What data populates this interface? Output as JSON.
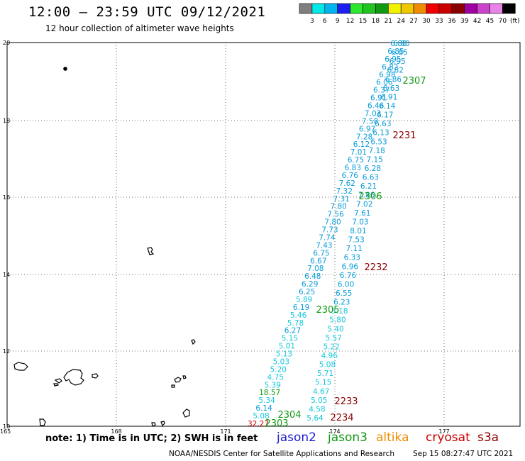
{
  "header": {
    "title": "12:00 – 23:59 UTC 09/12/2021",
    "subtitle": "12 hour collection of altimeter wave heights"
  },
  "colorbar": {
    "labels": [
      "3",
      "6",
      "9",
      "12",
      "15",
      "18",
      "21",
      "24",
      "27",
      "30",
      "33",
      "36",
      "39",
      "42",
      "45",
      "70"
    ],
    "unit": "(ft)",
    "colors": [
      "#7f7f7f",
      "#00e8e8",
      "#00b4f0",
      "#1e1ef0",
      "#2ee82e",
      "#22c422",
      "#119911",
      "#f2f200",
      "#f0c800",
      "#f08c00",
      "#f00000",
      "#cc0000",
      "#8b0000",
      "#a000a0",
      "#cc44cc",
      "#e884e8",
      "#000000"
    ]
  },
  "axes": {
    "x_ticks": [
      "165",
      "168",
      "171",
      "174",
      "177"
    ],
    "y_ticks": [
      "20",
      "18",
      "16",
      "14",
      "12",
      "10"
    ]
  },
  "passes": [
    {
      "label": "2307",
      "color": "#119911"
    },
    {
      "label": "2231",
      "color": "#8b0000"
    },
    {
      "label": "2306",
      "color": "#119911"
    },
    {
      "label": "2232",
      "color": "#8b0000"
    },
    {
      "label": "2305",
      "color": "#119911"
    },
    {
      "label": "2233",
      "color": "#8b0000"
    },
    {
      "label": "2304",
      "color": "#119911"
    },
    {
      "label": "2234",
      "color": "#8b0000"
    },
    {
      "label": "2303",
      "color": "#119911"
    }
  ],
  "track_left": [
    "6.80",
    "6.85",
    "6.95",
    "6.82",
    "6.98",
    "6.06",
    "6.37",
    "6.91",
    "6.46",
    "7.03",
    "7.58",
    "6.97",
    "7.28",
    "6.12",
    "7.01",
    "6.75",
    "6.83",
    "6.76",
    "7.62",
    "7.32",
    "7.31",
    "7.80",
    "7.56",
    "7.80",
    "7.73",
    "7.74",
    "7.43",
    "6.75",
    "6.67",
    "7.08",
    "6.48",
    "6.29",
    "6.25",
    "5.89",
    "6.19",
    "5.46",
    "5.78",
    "6.27",
    "5.15",
    "5.01",
    "5.13",
    "5.03",
    "5.20",
    "4.75",
    "5.39",
    "18.57",
    "5.34",
    "6.14",
    "5.08",
    "32.27"
  ],
  "track_right": [
    "6.80",
    "6.85",
    "6.95",
    "6.82",
    "6.86",
    "6.63",
    "6.91",
    "6.14",
    "6.17",
    "6.63",
    "6.13",
    "6.53",
    "7.18",
    "7.15",
    "6.28",
    "6.63",
    "6.21",
    "7.86",
    "7.02",
    "7.61",
    "7.03",
    "8.01",
    "7.53",
    "7.11",
    "6.33",
    "6.96",
    "6.76",
    "6.00",
    "6.55",
    "6.23",
    "5.18",
    "5.80",
    "5.40",
    "5.57",
    "5.22",
    "4.96",
    "5.08",
    "5.71",
    "5.15",
    "4.67",
    "5.05",
    "4.58",
    "5.64"
  ],
  "footer": {
    "note": "note: 1) Time is in UTC; 2) SWH is in feet",
    "satellites": [
      {
        "name": "jason2",
        "color": "#1e1ed0"
      },
      {
        "name": "jason3",
        "color": "#119911"
      },
      {
        "name": "altika",
        "color": "#f08c00"
      },
      {
        "name": "cryosat",
        "color": "#cc0000"
      },
      {
        "name": "s3a",
        "color": "#8b0000"
      }
    ],
    "credit": "NOAA/NESDIS Center for Satellite Applications and Research",
    "timestamp": "Sep 15 08:27:47 UTC 2021"
  }
}
